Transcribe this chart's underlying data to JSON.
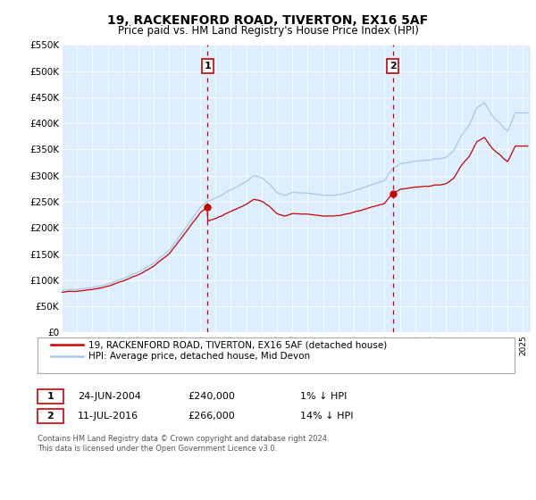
{
  "title": "19, RACKENFORD ROAD, TIVERTON, EX16 5AF",
  "subtitle": "Price paid vs. HM Land Registry's House Price Index (HPI)",
  "hpi_color": "#a8c8e8",
  "price_color": "#cc0000",
  "background_color": "#ddeeff",
  "plot_bg": "#ffffff",
  "ylim": [
    0,
    550000
  ],
  "yticks": [
    0,
    50000,
    100000,
    150000,
    200000,
    250000,
    300000,
    350000,
    400000,
    450000,
    500000,
    550000
  ],
  "ytick_labels": [
    "£0",
    "£50K",
    "£100K",
    "£150K",
    "£200K",
    "£250K",
    "£300K",
    "£350K",
    "£400K",
    "£450K",
    "£500K",
    "£550K"
  ],
  "xlim_start": 1995.0,
  "xlim_end": 2025.5,
  "transaction1_x": 2004.48,
  "transaction1_y": 240000,
  "transaction1_date": "24-JUN-2004",
  "transaction1_price": "£240,000",
  "transaction1_hpi": "1% ↓ HPI",
  "transaction2_x": 2016.53,
  "transaction2_y": 266000,
  "transaction2_date": "11-JUL-2016",
  "transaction2_price": "£266,000",
  "transaction2_hpi": "14% ↓ HPI",
  "legend_label1": "19, RACKENFORD ROAD, TIVERTON, EX16 5AF (detached house)",
  "legend_label2": "HPI: Average price, detached house, Mid Devon",
  "footer1": "Contains HM Land Registry data © Crown copyright and database right 2024.",
  "footer2": "This data is licensed under the Open Government Licence v3.0.",
  "hpi_anchors_yr": [
    1995,
    1996,
    1997,
    1998,
    1999,
    2000,
    2001,
    2002,
    2003,
    2004,
    2004.5,
    2005,
    2006,
    2007,
    2007.5,
    2008,
    2008.5,
    2009,
    2009.5,
    2010,
    2011,
    2012,
    2013,
    2014,
    2015,
    2016,
    2016.5,
    2017,
    2018,
    2019,
    2020,
    2020.5,
    2021,
    2021.5,
    2022,
    2022.5,
    2023,
    2023.5,
    2024,
    2024.5
  ],
  "hpi_anchors_v": [
    80000,
    83000,
    88000,
    95000,
    105000,
    118000,
    135000,
    160000,
    200000,
    240000,
    252000,
    258000,
    272000,
    288000,
    300000,
    295000,
    285000,
    268000,
    262000,
    268000,
    265000,
    260000,
    262000,
    268000,
    278000,
    288000,
    308000,
    318000,
    325000,
    328000,
    332000,
    345000,
    375000,
    395000,
    430000,
    440000,
    415000,
    400000,
    385000,
    420000
  ]
}
